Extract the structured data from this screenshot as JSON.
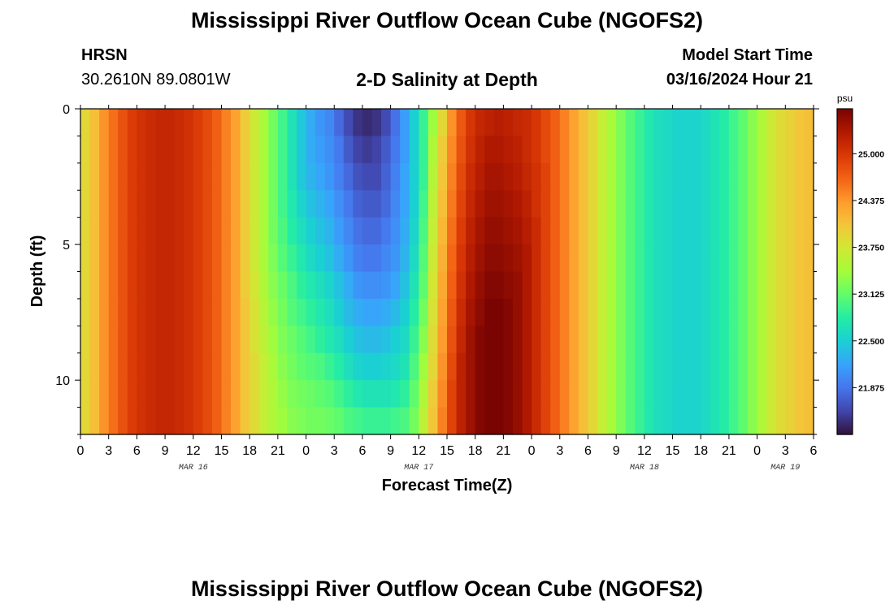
{
  "header": {
    "title": "Mississippi River Outflow Ocean Cube (NGOFS2)",
    "station": "HRSN",
    "coords": "30.2610N  89.0801W",
    "subtitle": "2-D Salinity at Depth",
    "model_start_label": "Model Start Time",
    "model_start_value": "03/16/2024 Hour 21"
  },
  "footer": {
    "title": "Mississippi River Outflow Ocean Cube (NGOFS2)"
  },
  "chart_data": {
    "type": "heatmap",
    "xlabel": "Forecast Time(Z)",
    "ylabel": "Depth (ft)",
    "x_tick_labels": [
      "0",
      "3",
      "6",
      "9",
      "12",
      "15",
      "18",
      "21",
      "0",
      "3",
      "6",
      "9",
      "12",
      "15",
      "18",
      "21",
      "0",
      "3",
      "6",
      "9",
      "12",
      "15",
      "18",
      "21",
      "0",
      "3",
      "6"
    ],
    "date_labels": [
      {
        "label": "MAR 16",
        "hour": 12
      },
      {
        "label": "MAR 17",
        "hour": 36
      },
      {
        "label": "MAR 18",
        "hour": 60
      },
      {
        "label": "MAR 19",
        "hour": 75
      }
    ],
    "x_range_hours": [
      0,
      78
    ],
    "y_ticks": [
      0,
      5,
      10
    ],
    "y_range_ft": [
      0,
      12
    ],
    "colorbar": {
      "unit": "psu",
      "tick_labels": [
        "25.000",
        "24.375",
        "23.750",
        "23.125",
        "22.500",
        "21.875"
      ],
      "range": [
        21.25,
        25.6
      ],
      "colors": [
        "#30123b",
        "#4145ab",
        "#4675ed",
        "#39a2fc",
        "#1bcfd4",
        "#24eca6",
        "#61fc6c",
        "#a4fc3b",
        "#d1e834",
        "#f3c63a",
        "#fe9b2d",
        "#f36315",
        "#d93806",
        "#b11901",
        "#7a0402"
      ]
    },
    "rows": [
      {
        "depth_ft": 0.5,
        "values": [
          23.9,
          24.1,
          24.4,
          24.6,
          24.8,
          24.95,
          25.05,
          25.1,
          25.15,
          25.15,
          25.1,
          25.05,
          24.95,
          24.85,
          24.7,
          24.5,
          24.3,
          24.0,
          23.7,
          23.45,
          23.2,
          22.95,
          22.7,
          22.45,
          22.25,
          22.1,
          22.0,
          21.8,
          21.6,
          21.45,
          21.4,
          21.45,
          21.6,
          21.85,
          22.15,
          22.5,
          22.9,
          23.4,
          23.9,
          24.4,
          24.75,
          25.0,
          25.15,
          25.2,
          25.25,
          25.2,
          25.15,
          25.1,
          25.0,
          24.85,
          24.7,
          24.5,
          24.3,
          24.1,
          23.9,
          23.65,
          23.45,
          23.25,
          23.05,
          22.9,
          22.75,
          22.65,
          22.6,
          22.55,
          22.55,
          22.55,
          22.6,
          22.7,
          22.8,
          22.95,
          23.1,
          23.3,
          23.5,
          23.7,
          23.85,
          23.95,
          24.05,
          24.1
        ]
      },
      {
        "depth_ft": 1.5,
        "values": [
          23.9,
          24.1,
          24.4,
          24.6,
          24.8,
          24.95,
          25.05,
          25.1,
          25.15,
          25.15,
          25.1,
          25.05,
          24.95,
          24.85,
          24.7,
          24.5,
          24.3,
          24.0,
          23.7,
          23.45,
          23.2,
          22.95,
          22.7,
          22.45,
          22.25,
          22.15,
          22.05,
          21.9,
          21.7,
          21.55,
          21.5,
          21.55,
          21.7,
          21.9,
          22.15,
          22.5,
          22.9,
          23.5,
          24.0,
          24.45,
          24.8,
          25.05,
          25.2,
          25.3,
          25.3,
          25.25,
          25.2,
          25.1,
          25.0,
          24.85,
          24.7,
          24.5,
          24.3,
          24.1,
          23.9,
          23.65,
          23.45,
          23.25,
          23.05,
          22.9,
          22.75,
          22.65,
          22.6,
          22.55,
          22.55,
          22.55,
          22.6,
          22.7,
          22.8,
          22.95,
          23.1,
          23.3,
          23.5,
          23.7,
          23.85,
          23.95,
          24.05,
          24.1
        ]
      },
      {
        "depth_ft": 2.5,
        "values": [
          23.9,
          24.1,
          24.4,
          24.6,
          24.8,
          24.95,
          25.05,
          25.1,
          25.15,
          25.15,
          25.1,
          25.05,
          24.95,
          24.85,
          24.7,
          24.5,
          24.3,
          24.0,
          23.7,
          23.45,
          23.2,
          22.95,
          22.7,
          22.45,
          22.3,
          22.2,
          22.1,
          21.95,
          21.8,
          21.65,
          21.6,
          21.6,
          21.75,
          21.95,
          22.2,
          22.5,
          22.9,
          23.55,
          24.05,
          24.5,
          24.85,
          25.1,
          25.25,
          25.35,
          25.35,
          25.3,
          25.25,
          25.15,
          25.05,
          24.9,
          24.7,
          24.5,
          24.3,
          24.1,
          23.9,
          23.65,
          23.45,
          23.25,
          23.05,
          22.9,
          22.75,
          22.65,
          22.6,
          22.55,
          22.55,
          22.55,
          22.6,
          22.7,
          22.8,
          22.95,
          23.1,
          23.3,
          23.5,
          23.7,
          23.85,
          23.95,
          24.05,
          24.1
        ]
      },
      {
        "depth_ft": 3.5,
        "values": [
          23.9,
          24.1,
          24.4,
          24.6,
          24.8,
          24.95,
          25.05,
          25.1,
          25.15,
          25.15,
          25.1,
          25.05,
          24.95,
          24.85,
          24.7,
          24.5,
          24.3,
          24.0,
          23.7,
          23.45,
          23.2,
          22.95,
          22.75,
          22.55,
          22.4,
          22.3,
          22.2,
          22.05,
          21.9,
          21.75,
          21.7,
          21.7,
          21.8,
          22.0,
          22.2,
          22.5,
          22.95,
          23.6,
          24.1,
          24.55,
          24.9,
          25.15,
          25.3,
          25.4,
          25.4,
          25.35,
          25.3,
          25.2,
          25.05,
          24.9,
          24.7,
          24.5,
          24.3,
          24.1,
          23.9,
          23.65,
          23.45,
          23.25,
          23.05,
          22.9,
          22.75,
          22.65,
          22.6,
          22.55,
          22.55,
          22.55,
          22.6,
          22.7,
          22.8,
          22.95,
          23.1,
          23.3,
          23.5,
          23.7,
          23.85,
          23.95,
          24.05,
          24.1
        ]
      },
      {
        "depth_ft": 4.5,
        "values": [
          23.9,
          24.1,
          24.4,
          24.6,
          24.8,
          24.95,
          25.05,
          25.1,
          25.15,
          25.15,
          25.1,
          25.05,
          24.95,
          24.85,
          24.7,
          24.5,
          24.3,
          24.0,
          23.7,
          23.45,
          23.2,
          23.0,
          22.8,
          22.65,
          22.5,
          22.4,
          22.3,
          22.15,
          22.0,
          21.85,
          21.8,
          21.8,
          21.9,
          22.05,
          22.25,
          22.55,
          23.0,
          23.65,
          24.15,
          24.6,
          24.95,
          25.2,
          25.35,
          25.45,
          25.45,
          25.4,
          25.35,
          25.25,
          25.1,
          24.9,
          24.7,
          24.5,
          24.3,
          24.1,
          23.9,
          23.65,
          23.45,
          23.25,
          23.05,
          22.9,
          22.75,
          22.65,
          22.6,
          22.55,
          22.55,
          22.55,
          22.6,
          22.7,
          22.8,
          22.95,
          23.1,
          23.3,
          23.5,
          23.7,
          23.85,
          23.95,
          24.05,
          24.1
        ]
      },
      {
        "depth_ft": 5.5,
        "values": [
          23.9,
          24.1,
          24.4,
          24.6,
          24.8,
          24.95,
          25.05,
          25.1,
          25.15,
          25.15,
          25.1,
          25.05,
          24.95,
          24.85,
          24.7,
          24.5,
          24.3,
          24.0,
          23.7,
          23.45,
          23.25,
          23.05,
          22.9,
          22.75,
          22.6,
          22.5,
          22.4,
          22.25,
          22.1,
          21.95,
          21.9,
          21.9,
          22.0,
          22.1,
          22.3,
          22.6,
          23.05,
          23.7,
          24.2,
          24.65,
          25.0,
          25.25,
          25.4,
          25.5,
          25.5,
          25.45,
          25.4,
          25.3,
          25.1,
          24.9,
          24.7,
          24.5,
          24.3,
          24.1,
          23.9,
          23.65,
          23.45,
          23.25,
          23.05,
          22.9,
          22.75,
          22.65,
          22.6,
          22.55,
          22.55,
          22.55,
          22.6,
          22.7,
          22.8,
          22.95,
          23.1,
          23.3,
          23.5,
          23.7,
          23.85,
          23.95,
          24.05,
          24.1
        ]
      },
      {
        "depth_ft": 6.5,
        "values": [
          23.9,
          24.1,
          24.4,
          24.6,
          24.8,
          24.95,
          25.05,
          25.1,
          25.15,
          25.15,
          25.1,
          25.05,
          24.95,
          24.85,
          24.7,
          24.5,
          24.3,
          24.0,
          23.75,
          23.5,
          23.3,
          23.15,
          23.0,
          22.85,
          22.75,
          22.65,
          22.55,
          22.4,
          22.25,
          22.1,
          22.05,
          22.05,
          22.1,
          22.2,
          22.4,
          22.7,
          23.1,
          23.75,
          24.25,
          24.7,
          25.05,
          25.3,
          25.45,
          25.55,
          25.55,
          25.5,
          25.45,
          25.3,
          25.1,
          24.9,
          24.7,
          24.5,
          24.3,
          24.1,
          23.9,
          23.65,
          23.45,
          23.25,
          23.05,
          22.9,
          22.75,
          22.65,
          22.6,
          22.55,
          22.55,
          22.55,
          22.6,
          22.7,
          22.8,
          22.95,
          23.1,
          23.3,
          23.5,
          23.7,
          23.85,
          23.95,
          24.05,
          24.1
        ]
      },
      {
        "depth_ft": 7.5,
        "values": [
          23.9,
          24.1,
          24.4,
          24.6,
          24.8,
          24.95,
          25.05,
          25.1,
          25.15,
          25.15,
          25.1,
          25.05,
          24.95,
          24.85,
          24.7,
          24.5,
          24.3,
          24.05,
          23.8,
          23.55,
          23.35,
          23.2,
          23.05,
          22.95,
          22.85,
          22.75,
          22.65,
          22.5,
          22.35,
          22.25,
          22.2,
          22.2,
          22.25,
          22.35,
          22.5,
          22.8,
          23.2,
          23.8,
          24.3,
          24.75,
          25.1,
          25.35,
          25.5,
          25.6,
          25.6,
          25.55,
          25.45,
          25.3,
          25.1,
          24.9,
          24.7,
          24.5,
          24.3,
          24.1,
          23.9,
          23.65,
          23.45,
          23.25,
          23.05,
          22.9,
          22.75,
          22.65,
          22.6,
          22.55,
          22.55,
          22.55,
          22.6,
          22.7,
          22.8,
          22.95,
          23.1,
          23.3,
          23.5,
          23.7,
          23.85,
          23.95,
          24.05,
          24.1
        ]
      },
      {
        "depth_ft": 8.5,
        "values": [
          23.9,
          24.1,
          24.4,
          24.6,
          24.8,
          24.95,
          25.05,
          25.1,
          25.15,
          25.15,
          25.1,
          25.05,
          24.95,
          24.85,
          24.7,
          24.5,
          24.3,
          24.05,
          23.8,
          23.6,
          23.4,
          23.25,
          23.15,
          23.05,
          22.95,
          22.85,
          22.75,
          22.65,
          22.5,
          22.4,
          22.35,
          22.35,
          22.4,
          22.5,
          22.6,
          22.9,
          23.3,
          23.85,
          24.35,
          24.8,
          25.15,
          25.4,
          25.55,
          25.6,
          25.6,
          25.55,
          25.45,
          25.3,
          25.1,
          24.9,
          24.7,
          24.5,
          24.3,
          24.1,
          23.9,
          23.65,
          23.45,
          23.25,
          23.05,
          22.9,
          22.75,
          22.65,
          22.6,
          22.55,
          22.55,
          22.55,
          22.6,
          22.7,
          22.8,
          22.95,
          23.1,
          23.3,
          23.5,
          23.7,
          23.85,
          23.95,
          24.05,
          24.1
        ]
      },
      {
        "depth_ft": 9.5,
        "values": [
          23.9,
          24.1,
          24.4,
          24.6,
          24.8,
          24.95,
          25.05,
          25.1,
          25.15,
          25.15,
          25.1,
          25.05,
          24.95,
          24.85,
          24.7,
          24.5,
          24.3,
          24.05,
          23.85,
          23.65,
          23.45,
          23.3,
          23.2,
          23.1,
          23.05,
          23.0,
          22.9,
          22.8,
          22.65,
          22.55,
          22.5,
          22.5,
          22.55,
          22.6,
          22.7,
          23.0,
          23.4,
          23.9,
          24.4,
          24.85,
          25.2,
          25.4,
          25.55,
          25.6,
          25.6,
          25.55,
          25.45,
          25.3,
          25.1,
          24.9,
          24.7,
          24.5,
          24.3,
          24.1,
          23.9,
          23.65,
          23.45,
          23.25,
          23.05,
          22.9,
          22.75,
          22.65,
          22.6,
          22.55,
          22.55,
          22.55,
          22.6,
          22.7,
          22.8,
          22.95,
          23.1,
          23.3,
          23.5,
          23.7,
          23.85,
          23.95,
          24.05,
          24.1
        ]
      },
      {
        "depth_ft": 10.5,
        "values": [
          23.9,
          24.1,
          24.4,
          24.6,
          24.8,
          24.95,
          25.05,
          25.1,
          25.15,
          25.15,
          25.1,
          25.05,
          24.95,
          24.85,
          24.7,
          24.5,
          24.3,
          24.05,
          23.85,
          23.65,
          23.5,
          23.35,
          23.25,
          23.2,
          23.15,
          23.1,
          23.05,
          22.95,
          22.85,
          22.75,
          22.7,
          22.7,
          22.7,
          22.75,
          22.85,
          23.1,
          23.5,
          24.0,
          24.45,
          24.9,
          25.2,
          25.4,
          25.55,
          25.6,
          25.6,
          25.55,
          25.45,
          25.3,
          25.1,
          24.9,
          24.7,
          24.5,
          24.3,
          24.1,
          23.9,
          23.65,
          23.45,
          23.25,
          23.05,
          22.9,
          22.75,
          22.65,
          22.6,
          22.55,
          22.55,
          22.55,
          22.6,
          22.7,
          22.8,
          22.95,
          23.1,
          23.3,
          23.5,
          23.7,
          23.85,
          23.95,
          24.05,
          24.1
        ]
      },
      {
        "depth_ft": 11.5,
        "values": [
          23.9,
          24.1,
          24.4,
          24.6,
          24.8,
          24.95,
          25.05,
          25.1,
          25.15,
          25.15,
          25.1,
          25.05,
          24.95,
          24.85,
          24.7,
          24.5,
          24.3,
          24.05,
          23.85,
          23.65,
          23.5,
          23.4,
          23.3,
          23.25,
          23.2,
          23.2,
          23.15,
          23.1,
          23.0,
          22.95,
          22.9,
          22.9,
          22.9,
          22.95,
          23.0,
          23.2,
          23.6,
          24.05,
          24.5,
          24.9,
          25.2,
          25.4,
          25.55,
          25.6,
          25.6,
          25.55,
          25.45,
          25.3,
          25.1,
          24.9,
          24.7,
          24.5,
          24.3,
          24.1,
          23.9,
          23.65,
          23.45,
          23.25,
          23.05,
          22.9,
          22.75,
          22.65,
          22.6,
          22.55,
          22.55,
          22.55,
          22.6,
          22.7,
          22.8,
          22.95,
          23.1,
          23.3,
          23.5,
          23.7,
          23.85,
          23.95,
          24.05,
          24.1
        ]
      }
    ]
  }
}
